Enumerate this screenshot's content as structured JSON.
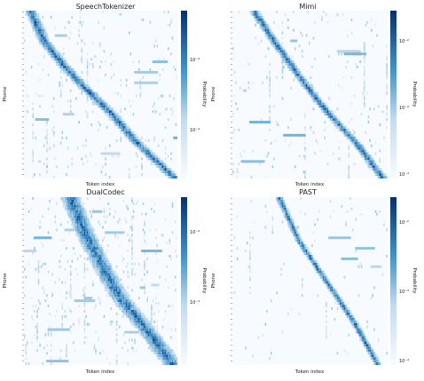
{
  "figure": {
    "cmap_light": "#f7fbff",
    "cmap_dark": "#08306b"
  },
  "chart_data": [
    {
      "type": "heatmap",
      "title": "SpeechTokenizer",
      "xlabel": "Token index",
      "ylabel": "Phone",
      "colorbar_label": "Probability",
      "colorbar_ticks": [
        "10⁻³",
        "10⁻⁴"
      ],
      "rows": 64,
      "diagonal": [
        [
          0,
          0.04
        ],
        [
          0.18,
          0.13
        ],
        [
          0.32,
          0.25
        ],
        [
          0.45,
          0.38
        ],
        [
          0.6,
          0.55
        ],
        [
          0.78,
          0.72
        ],
        [
          1,
          0.97
        ]
      ],
      "spread": 0.025,
      "noise": 0.9,
      "seed": 11
    },
    {
      "type": "heatmap",
      "title": "Mimi",
      "xlabel": "Token index",
      "ylabel": "Phone",
      "colorbar_label": "Probability",
      "colorbar_ticks": [
        "10⁻²",
        "10⁻³",
        "10⁻⁴"
      ],
      "rows": 64,
      "diagonal": [
        [
          0,
          0.14
        ],
        [
          0.2,
          0.28
        ],
        [
          0.42,
          0.45
        ],
        [
          0.62,
          0.62
        ],
        [
          0.8,
          0.8
        ],
        [
          1,
          0.96
        ]
      ],
      "spread": 0.02,
      "noise": 0.7,
      "seed": 23
    },
    {
      "type": "heatmap",
      "title": "DualCodec",
      "xlabel": "Token index",
      "ylabel": "Phone",
      "colorbar_label": "Probability",
      "colorbar_ticks": [
        "10⁻³",
        "10⁻⁴"
      ],
      "rows": 64,
      "diagonal": [
        [
          0,
          0.3
        ],
        [
          0.18,
          0.38
        ],
        [
          0.4,
          0.5
        ],
        [
          0.6,
          0.62
        ],
        [
          0.8,
          0.8
        ],
        [
          1,
          0.96
        ]
      ],
      "spread": 0.04,
      "noise": 1.3,
      "seed": 37
    },
    {
      "type": "heatmap",
      "title": "PAST",
      "xlabel": "Token index",
      "ylabel": "Phone",
      "colorbar_label": "Probability",
      "colorbar_ticks": [
        "10⁻²",
        "10⁻³",
        "10⁻⁴"
      ],
      "rows": 64,
      "diagonal": [
        [
          0,
          0.3
        ],
        [
          0.25,
          0.42
        ],
        [
          0.5,
          0.6
        ],
        [
          0.75,
          0.78
        ],
        [
          1,
          0.93
        ]
      ],
      "spread": 0.015,
      "noise": 0.35,
      "seed": 53
    }
  ]
}
